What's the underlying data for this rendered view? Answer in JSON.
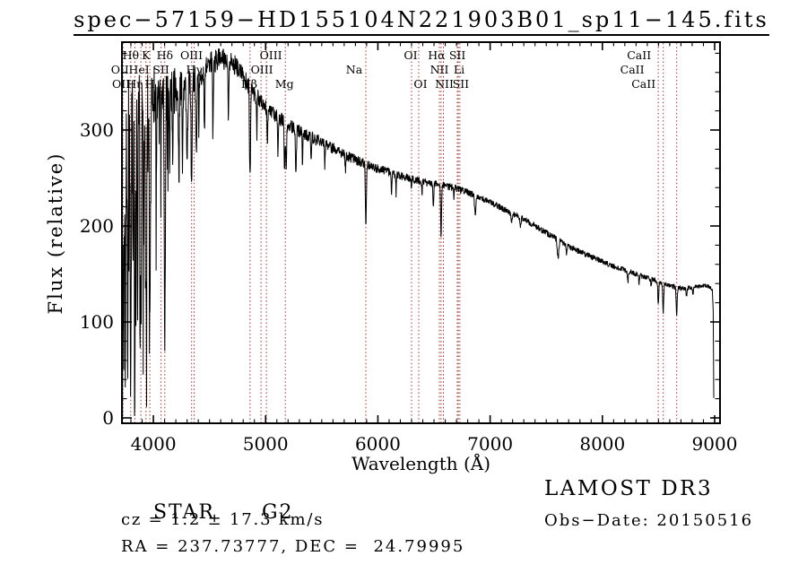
{
  "title": "spec−57159−HD155104N221903B01_sp11−145.fits",
  "footer": {
    "class_label": "STAR",
    "subclass": "G2",
    "cz_line": "cz = 1.2 ± 17.3 km/s",
    "radec_line": "RA = 237.73777, DEC =  24.79995",
    "survey": "LAMOST DR3",
    "obs_date_line": "Obs−Date: 20150516"
  },
  "chart_data": {
    "type": "line",
    "title": "spec−57159−HD155104N221903B01_sp11−145.fits",
    "xlabel": "Wavelength (Å)",
    "ylabel": "Flux (relative)",
    "xlim": [
      3720,
      9048
    ],
    "ylim": [
      0,
      390
    ],
    "x_ticks": [
      4000,
      5000,
      6000,
      7000,
      8000,
      9000
    ],
    "y_ticks": [
      0,
      100,
      200,
      300
    ],
    "x_minor_step": 100,
    "y_minor_step": 20,
    "grid": "off",
    "legend": "none",
    "colors": {
      "trace": "#000000",
      "marker_line": "#9b3434",
      "text": "#000000",
      "background": "#ffffff"
    },
    "spectral_lines": [
      {
        "label": "Hθ",
        "wavelength": 3798.0,
        "row": 1,
        "dx": 0
      },
      {
        "label": "K",
        "wavelength": 3933.7,
        "row": 1,
        "dx": 0
      },
      {
        "label": "Hδ",
        "wavelength": 4101.7,
        "row": 1,
        "dx": 0
      },
      {
        "label": "OIII",
        "wavelength": 4363.2,
        "row": 1,
        "dx": -3
      },
      {
        "label": "OIII",
        "wavelength": 5006.8,
        "row": 1,
        "dx": 5
      },
      {
        "label": "OI",
        "wavelength": 6300.2,
        "row": 1,
        "dx": -1
      },
      {
        "label": "Hα",
        "wavelength": 6562.8,
        "row": 1,
        "dx": -5
      },
      {
        "label": "SII",
        "wavelength": 6716.4,
        "row": 1,
        "dx": -1
      },
      {
        "label": "CaII",
        "wavelength": 8542.1,
        "row": 1,
        "dx": -27
      },
      {
        "label": "OII",
        "wavelength": 3726.0,
        "row": 2,
        "dx": -3
      },
      {
        "label": "HeI",
        "wavelength": 3888.6,
        "row": 2,
        "dx": -2
      },
      {
        "label": "SII",
        "wavelength": 4068.6,
        "row": 2,
        "dx": 0
      },
      {
        "label": "Hγ",
        "wavelength": 4340.5,
        "row": 2,
        "dx": 3
      },
      {
        "label": "OIII",
        "wavelength": 4959.0,
        "row": 2,
        "dx": 1
      },
      {
        "label": "Na",
        "wavelength": 5892.9,
        "row": 2,
        "dx": -13
      },
      {
        "label": "NII",
        "wavelength": 6548.1,
        "row": 2,
        "dx": 0
      },
      {
        "label": "Li",
        "wavelength": 6707.8,
        "row": 2,
        "dx": 2
      },
      {
        "label": "CaII",
        "wavelength": 8498.0,
        "row": 2,
        "dx": -29
      },
      {
        "label": "OII",
        "wavelength": 3728.8,
        "row": 3,
        "dx": -2
      },
      {
        "label": "Hη",
        "wavelength": 3835.4,
        "row": 3,
        "dx": 0
      },
      {
        "label": "H",
        "wavelength": 3968.5,
        "row": 3,
        "dx": 0
      },
      {
        "label": "Hβ",
        "wavelength": 4861.3,
        "row": 3,
        "dx": -1
      },
      {
        "label": "Mg",
        "wavelength": 5175.4,
        "row": 3,
        "dx": -1
      },
      {
        "label": "OI",
        "wavelength": 6363.8,
        "row": 3,
        "dx": 2
      },
      {
        "label": "NII",
        "wavelength": 6583.4,
        "row": 3,
        "dx": 1
      },
      {
        "label": "SII",
        "wavelength": 6730.8,
        "row": 3,
        "dx": 1
      },
      {
        "label": "CaII",
        "wavelength": 8662.1,
        "row": 3,
        "dx": -37
      }
    ],
    "spectrum": {
      "noise_seed": 20150516,
      "sample_step_angstrom": 2.5,
      "continuum": [
        [
          3722,
          150
        ],
        [
          3730,
          240
        ],
        [
          3745,
          280
        ],
        [
          3760,
          295
        ],
        [
          3780,
          305
        ],
        [
          3800,
          310
        ],
        [
          3830,
          315
        ],
        [
          3860,
          318
        ],
        [
          3890,
          322
        ],
        [
          3920,
          325
        ],
        [
          3950,
          328
        ],
        [
          3980,
          330
        ],
        [
          4010,
          332
        ],
        [
          4040,
          334
        ],
        [
          4070,
          336
        ],
        [
          4100,
          338
        ],
        [
          4150,
          340
        ],
        [
          4200,
          342
        ],
        [
          4250,
          345
        ],
        [
          4300,
          348
        ],
        [
          4350,
          352
        ],
        [
          4400,
          356
        ],
        [
          4450,
          362
        ],
        [
          4500,
          368
        ],
        [
          4550,
          372
        ],
        [
          4600,
          375
        ],
        [
          4650,
          374
        ],
        [
          4700,
          371
        ],
        [
          4750,
          364
        ],
        [
          4800,
          355
        ],
        [
          4861,
          345
        ],
        [
          4900,
          338
        ],
        [
          5000,
          323
        ],
        [
          5100,
          314
        ],
        [
          5200,
          306
        ],
        [
          5300,
          299
        ],
        [
          5400,
          293
        ],
        [
          5500,
          287
        ],
        [
          5600,
          281
        ],
        [
          5700,
          275
        ],
        [
          5800,
          269
        ],
        [
          5900,
          264
        ],
        [
          6000,
          260
        ],
        [
          6100,
          256
        ],
        [
          6200,
          252
        ],
        [
          6300,
          249
        ],
        [
          6400,
          246
        ],
        [
          6500,
          244
        ],
        [
          6600,
          242
        ],
        [
          6700,
          239
        ],
        [
          6800,
          235
        ],
        [
          6900,
          230
        ],
        [
          7000,
          225
        ],
        [
          7100,
          219
        ],
        [
          7200,
          213
        ],
        [
          7300,
          207
        ],
        [
          7400,
          200
        ],
        [
          7500,
          193
        ],
        [
          7600,
          186
        ],
        [
          7700,
          179
        ],
        [
          7800,
          173
        ],
        [
          7900,
          168
        ],
        [
          8000,
          163
        ],
        [
          8100,
          158
        ],
        [
          8200,
          154
        ],
        [
          8300,
          150
        ],
        [
          8400,
          146
        ],
        [
          8500,
          142
        ],
        [
          8600,
          138
        ],
        [
          8700,
          135
        ],
        [
          8800,
          136
        ],
        [
          8900,
          138
        ],
        [
          8950,
          137
        ],
        [
          8980,
          133
        ],
        [
          8987,
          110
        ],
        [
          8991,
          40
        ],
        [
          8993,
          3
        ]
      ],
      "absorption_lines": [
        [
          3726,
          170,
          3
        ],
        [
          3737,
          130,
          3
        ],
        [
          3750,
          200,
          3.5
        ],
        [
          3771,
          240,
          3.5
        ],
        [
          3798,
          240,
          4
        ],
        [
          3820,
          160,
          3
        ],
        [
          3835,
          255,
          4
        ],
        [
          3860,
          170,
          3
        ],
        [
          3889,
          245,
          4.5
        ],
        [
          3912,
          140,
          3
        ],
        [
          3934,
          235,
          5
        ],
        [
          3969,
          250,
          5
        ],
        [
          4026,
          110,
          3
        ],
        [
          4068,
          70,
          3
        ],
        [
          4102,
          248,
          5
        ],
        [
          4144,
          80,
          3
        ],
        [
          4172,
          55,
          3
        ],
        [
          4227,
          100,
          4
        ],
        [
          4260,
          80,
          3.5
        ],
        [
          4300,
          90,
          5
        ],
        [
          4340,
          105,
          4.5
        ],
        [
          4383,
          90,
          4
        ],
        [
          4405,
          60,
          3
        ],
        [
          4455,
          70,
          3.5
        ],
        [
          4531,
          75,
          3.5
        ],
        [
          4668,
          60,
          3.5
        ],
        [
          4861,
          100,
          4.5
        ],
        [
          4921,
          40,
          3
        ],
        [
          5015,
          35,
          3
        ],
        [
          5110,
          35,
          4
        ],
        [
          5169,
          48,
          4
        ],
        [
          5183,
          52,
          4
        ],
        [
          5270,
          48,
          4.5
        ],
        [
          5328,
          30,
          3
        ],
        [
          5405,
          28,
          3
        ],
        [
          5528,
          22,
          3
        ],
        [
          5711,
          18,
          3
        ],
        [
          5893,
          66,
          4.5
        ],
        [
          6122,
          22,
          3
        ],
        [
          6162,
          20,
          3
        ],
        [
          6300,
          12,
          3
        ],
        [
          6393,
          14,
          3
        ],
        [
          6494,
          24,
          4
        ],
        [
          6563,
          53,
          4
        ],
        [
          6677,
          14,
          3
        ],
        [
          6867,
          22,
          5
        ],
        [
          7190,
          12,
          5
        ],
        [
          7270,
          10,
          4
        ],
        [
          7605,
          20,
          6
        ],
        [
          7680,
          10,
          4
        ],
        [
          8227,
          12,
          4
        ],
        [
          8327,
          8,
          3
        ],
        [
          8433,
          10,
          3
        ],
        [
          8498,
          24,
          4
        ],
        [
          8542,
          30,
          4.5
        ],
        [
          8662,
          27,
          4.5
        ],
        [
          8750,
          10,
          4
        ],
        [
          8807,
          8,
          3
        ]
      ],
      "noise_profile": [
        [
          3722,
          65
        ],
        [
          3800,
          55
        ],
        [
          3900,
          48
        ],
        [
          4000,
          38
        ],
        [
          4100,
          30
        ],
        [
          4200,
          24
        ],
        [
          4300,
          18
        ],
        [
          4450,
          14
        ],
        [
          4600,
          12
        ],
        [
          4800,
          10
        ],
        [
          5000,
          8.5
        ],
        [
          5300,
          7
        ],
        [
          5600,
          6
        ],
        [
          5900,
          5
        ],
        [
          6200,
          4.5
        ],
        [
          6600,
          4
        ],
        [
          7000,
          3.5
        ],
        [
          7600,
          3.2
        ],
        [
          8200,
          3
        ],
        [
          8700,
          2.8
        ],
        [
          8985,
          2
        ]
      ],
      "blue_spikes": {
        "lambda_max": 4140,
        "probability": 0.15,
        "depth_deep": 200,
        "depth_shallow": 100
      }
    }
  }
}
